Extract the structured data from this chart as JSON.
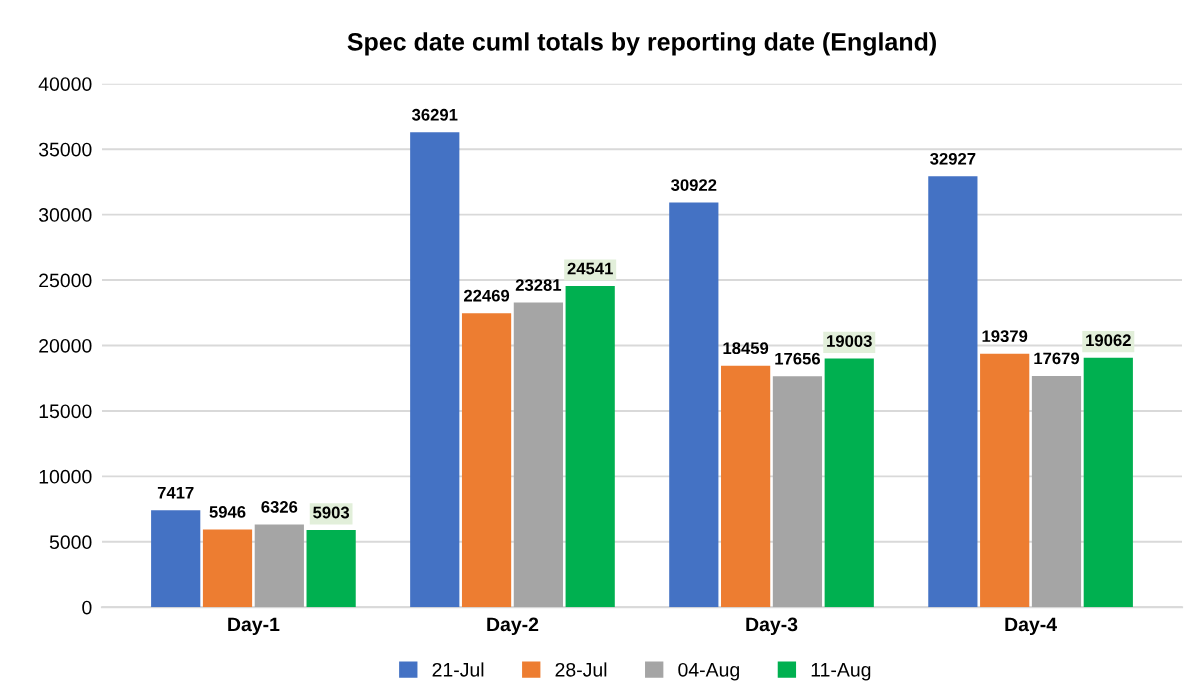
{
  "chart_data": {
    "type": "bar",
    "title": "Spec date cuml totals by reporting date (England)",
    "categories": [
      "Day-1",
      "Day-2",
      "Day-3",
      "Day-4"
    ],
    "series": [
      {
        "name": "21-Jul",
        "color": "#4472c4",
        "values": [
          7417,
          36291,
          30922,
          32927
        ]
      },
      {
        "name": "28-Jul",
        "color": "#ed7d31",
        "values": [
          5946,
          22469,
          18459,
          19379
        ]
      },
      {
        "name": "04-Aug",
        "color": "#a5a5a5",
        "values": [
          6326,
          23281,
          17656,
          17679
        ]
      },
      {
        "name": "11-Aug",
        "color": "#00b050",
        "values": [
          5903,
          24541,
          19003,
          19062
        ]
      }
    ],
    "ylim": [
      0,
      40000
    ],
    "yticks": [
      0,
      5000,
      10000,
      15000,
      20000,
      25000,
      30000,
      35000,
      40000
    ],
    "grid": "y",
    "legend": "bottom",
    "data_labels": true
  }
}
